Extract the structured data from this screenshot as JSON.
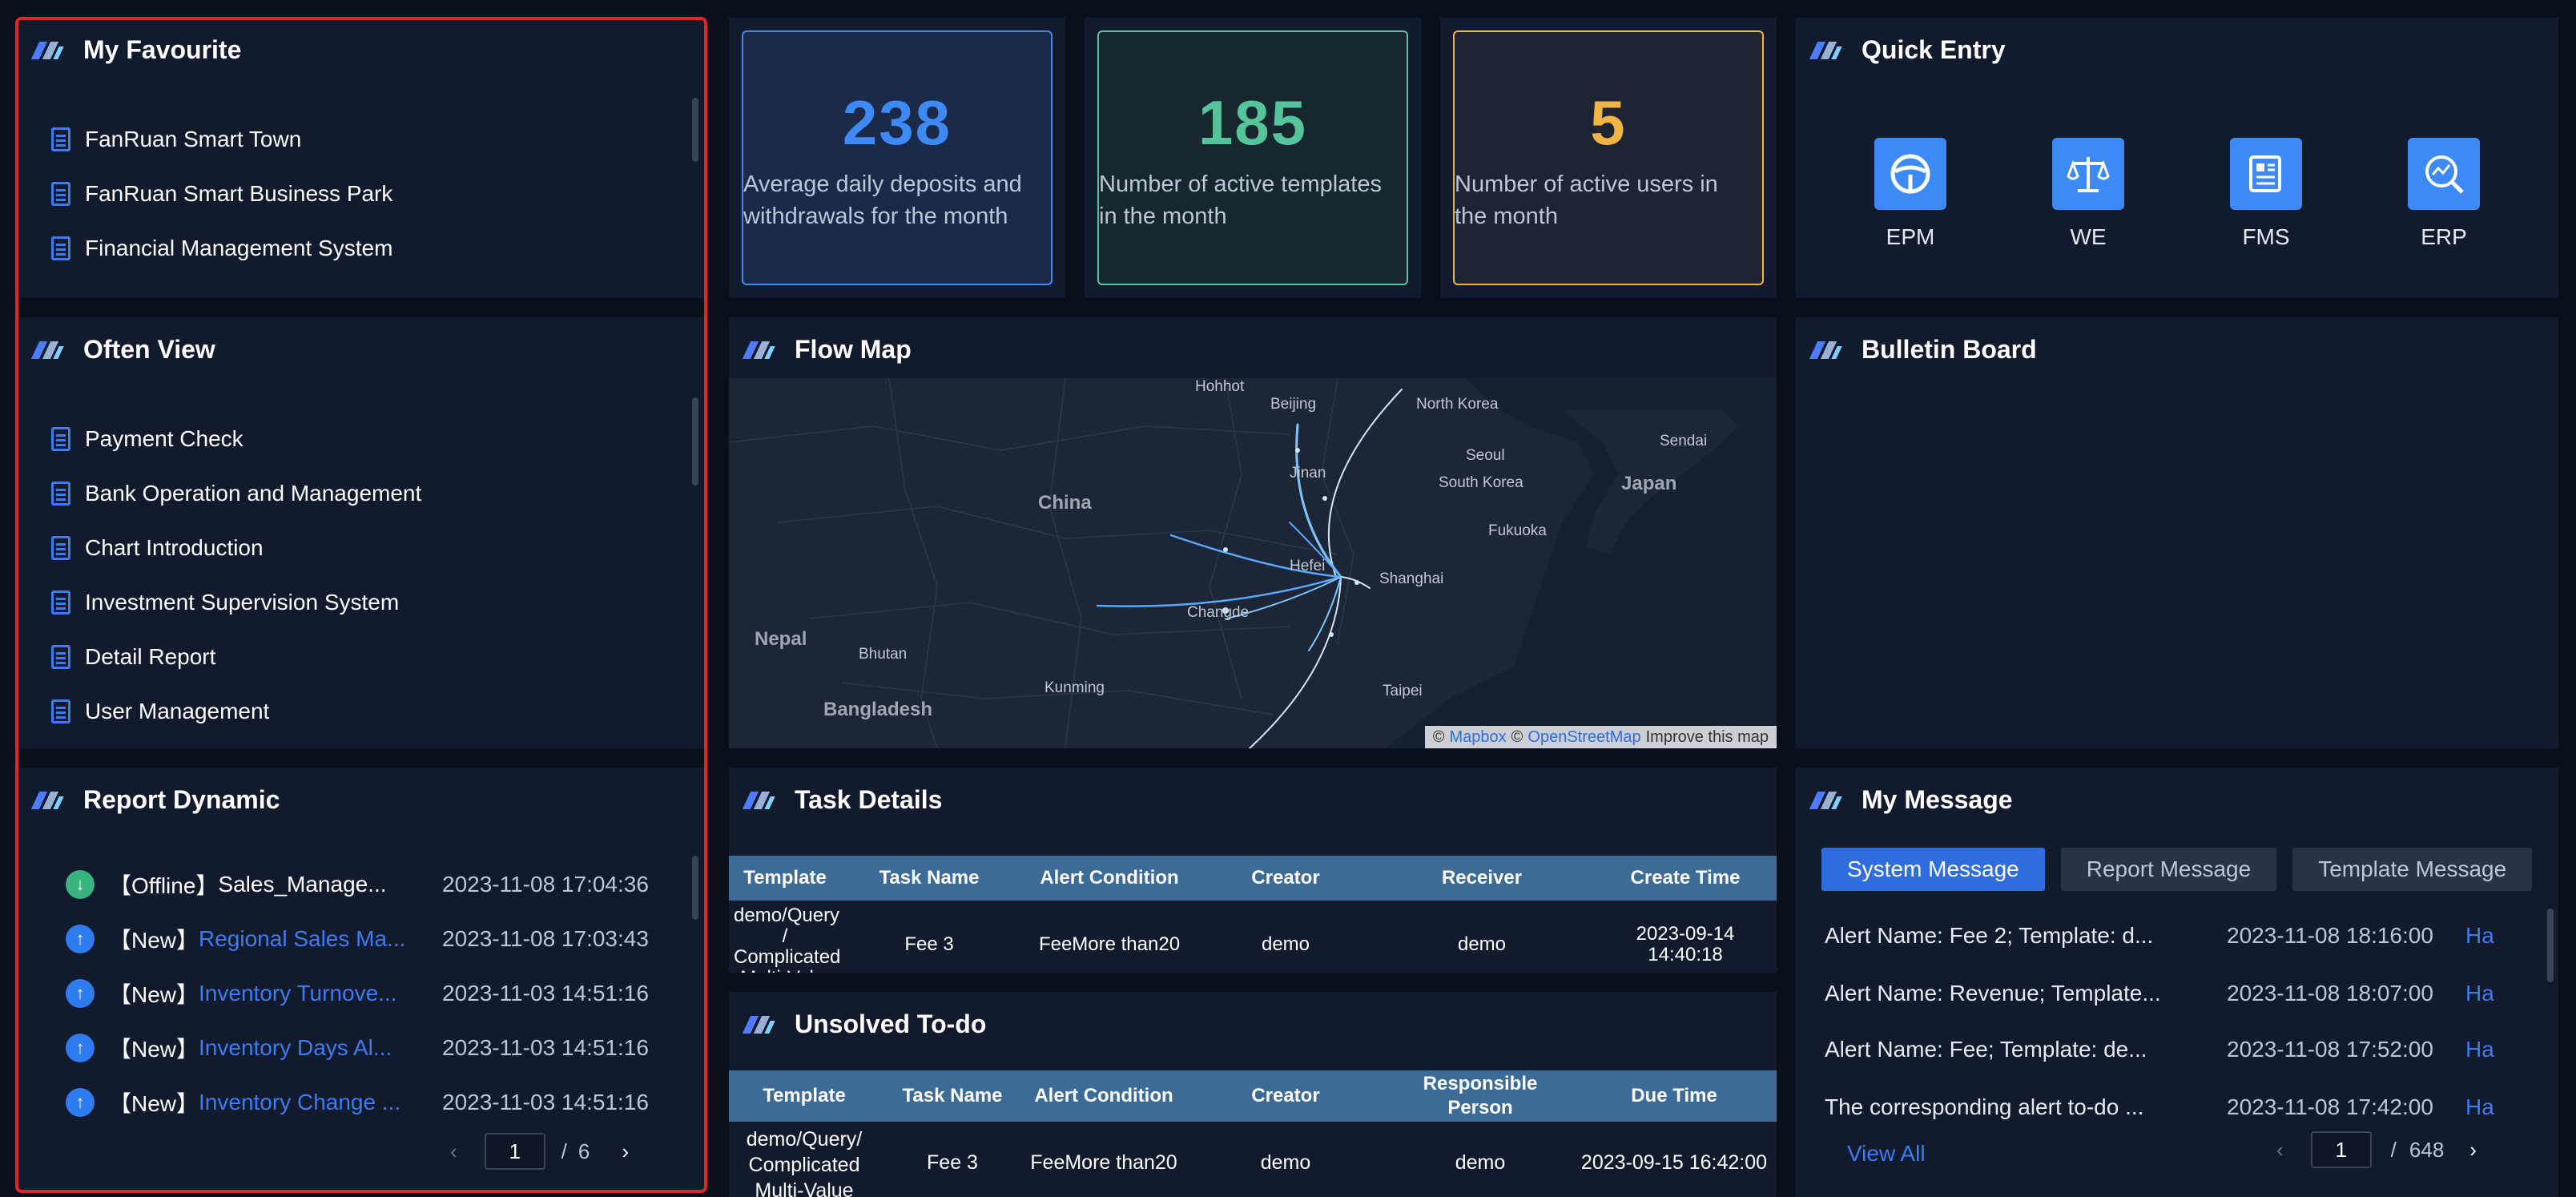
{
  "favourite": {
    "title": "My Favourite",
    "items": [
      "FanRuan Smart Town",
      "FanRuan Smart Business Park",
      "Financial Management System"
    ]
  },
  "often_view": {
    "title": "Often View",
    "items": [
      "Payment Check",
      "Bank Operation and Management",
      "Chart Introduction",
      "Investment Supervision System",
      "Detail Report",
      "User Management"
    ]
  },
  "report_dynamic": {
    "title": "Report Dynamic",
    "rows": [
      {
        "tag": "【Offline】",
        "name": "Sales_Manage...",
        "time": "2023-11-08 17:04:36",
        "kind": "offline"
      },
      {
        "tag": "【New】",
        "name": "Regional Sales Ma...",
        "time": "2023-11-08 17:03:43",
        "kind": "new"
      },
      {
        "tag": "【New】",
        "name": "Inventory Turnove...",
        "time": "2023-11-03 14:51:16",
        "kind": "new"
      },
      {
        "tag": "【New】",
        "name": "Inventory Days Al...",
        "time": "2023-11-03 14:51:16",
        "kind": "new"
      },
      {
        "tag": "【New】",
        "name": "Inventory Change ...",
        "time": "2023-11-03 14:51:16",
        "kind": "new"
      }
    ],
    "pager": {
      "current": "1",
      "sep": "/",
      "total": "6"
    }
  },
  "stats": [
    {
      "value": "238",
      "label": "Average daily deposits and withdrawals for the month",
      "color": "#3d8af7"
    },
    {
      "value": "185",
      "label": "Number of active templates in the month",
      "color": "#56c49a"
    },
    {
      "value": "5",
      "label": "Number of active users in the month",
      "color": "#f2b544"
    }
  ],
  "quick_entry": {
    "title": "Quick Entry",
    "items": [
      {
        "label": "EPM",
        "icon": "steering-wheel-icon"
      },
      {
        "label": "WE",
        "icon": "scale-icon"
      },
      {
        "label": "FMS",
        "icon": "newspaper-icon"
      },
      {
        "label": "ERP",
        "icon": "search-chart-icon"
      }
    ]
  },
  "flow_map": {
    "title": "Flow Map",
    "cities": [
      "Hohhot",
      "Beijing",
      "North Korea",
      "Seoul",
      "South Korea",
      "Sendai",
      "Japan",
      "Jinan",
      "China",
      "Fukuoka",
      "Hefei",
      "Shanghai",
      "Changde",
      "Nepal",
      "Bhutan",
      "Kunming",
      "Bangladesh",
      "Taipei"
    ],
    "attribution": {
      "copy1": "©",
      "mapbox": "Mapbox",
      "copy2": "©",
      "osm": "OpenStreetMap",
      "improve": "Improve this map"
    }
  },
  "bulletin": {
    "title": "Bulletin Board"
  },
  "task_details": {
    "title": "Task Details",
    "headers": [
      "Template",
      "Task Name",
      "Alert Condition",
      "Creator",
      "Receiver",
      "Create Time"
    ],
    "rows": [
      [
        "demo/Query / Complicated Multi-Val...",
        "Fee 3",
        "FeeMore than20",
        "demo",
        "demo",
        "2023-09-14 14:40:18"
      ]
    ]
  },
  "unsolved": {
    "title": "Unsolved To-do",
    "headers": [
      "Template",
      "Task Name",
      "Alert Condition",
      "Creator",
      "Responsible Person",
      "Due Time"
    ],
    "rows": [
      [
        "demo/Query/ Complicated Multi-Value",
        "Fee 3",
        "FeeMore than20",
        "demo",
        "demo",
        "2023-09-15 16:42:00"
      ]
    ]
  },
  "my_message": {
    "title": "My Message",
    "tabs": [
      "System Message",
      "Report Message",
      "Template Message"
    ],
    "active_tab": 0,
    "rows": [
      {
        "text": "Alert Name: Fee 2; Template: d...",
        "time": "2023-11-08 18:16:00",
        "action": "Ha"
      },
      {
        "text": "Alert Name: Revenue; Template...",
        "time": "2023-11-08 18:07:00",
        "action": "Ha"
      },
      {
        "text": "Alert Name: Fee; Template: de...",
        "time": "2023-11-08 17:52:00",
        "action": "Ha"
      },
      {
        "text": "The corresponding alert to-do ...",
        "time": "2023-11-08 17:42:00",
        "action": "Ha"
      }
    ],
    "view_all": "View All",
    "pager": {
      "current": "1",
      "sep": "/",
      "total": "648"
    }
  }
}
